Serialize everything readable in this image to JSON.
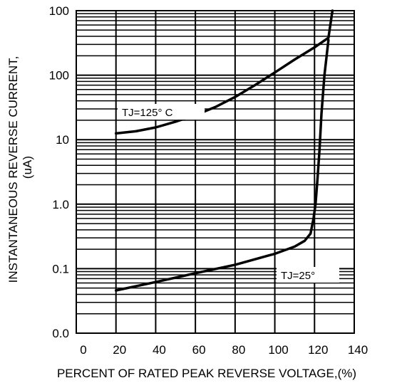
{
  "chart_data": {
    "type": "line",
    "title": "",
    "xlabel": "PERCENT OF RATED PEAK REVERSE VOLTAGE,(%)",
    "ylabel_line1": "INSTANTANEOUS REVERSE CURRENT,",
    "ylabel_line2": "(uA)",
    "x_ticks": [
      "0",
      "20",
      "40",
      "60",
      "80",
      "100",
      "120",
      "140"
    ],
    "x_range": [
      0,
      140
    ],
    "y_tick_labels": [
      "0.0",
      "0.1",
      "1.0",
      "10",
      "100",
      "100"
    ],
    "y_range_decades": [
      0,
      5
    ],
    "grid": true,
    "y_scale": "log",
    "series": [
      {
        "name": "TJ=125° C",
        "color": "#000000",
        "points": [
          {
            "x": 20,
            "y": 12.5
          },
          {
            "x": 30,
            "y": 13.5
          },
          {
            "x": 40,
            "y": 15.5
          },
          {
            "x": 50,
            "y": 19
          },
          {
            "x": 60,
            "y": 24
          },
          {
            "x": 70,
            "y": 32
          },
          {
            "x": 80,
            "y": 46
          },
          {
            "x": 90,
            "y": 70
          },
          {
            "x": 100,
            "y": 110
          },
          {
            "x": 110,
            "y": 175
          },
          {
            "x": 120,
            "y": 270
          },
          {
            "x": 127,
            "y": 380
          },
          {
            "x": 129,
            "y": 1000
          }
        ]
      },
      {
        "name": "TJ=25°",
        "color": "#000000",
        "points": [
          {
            "x": 20,
            "y": 0.046
          },
          {
            "x": 40,
            "y": 0.062
          },
          {
            "x": 60,
            "y": 0.085
          },
          {
            "x": 80,
            "y": 0.115
          },
          {
            "x": 100,
            "y": 0.17
          },
          {
            "x": 110,
            "y": 0.22
          },
          {
            "x": 115,
            "y": 0.27
          },
          {
            "x": 118,
            "y": 0.35
          },
          {
            "x": 119.5,
            "y": 0.6
          },
          {
            "x": 120.5,
            "y": 1.0
          },
          {
            "x": 121.5,
            "y": 2.5
          },
          {
            "x": 122.5,
            "y": 7
          },
          {
            "x": 123.5,
            "y": 25
          },
          {
            "x": 125,
            "y": 100
          },
          {
            "x": 127,
            "y": 350
          }
        ]
      }
    ],
    "annotations": [
      {
        "text": "TJ=125° C",
        "series": 0
      },
      {
        "text": "TJ=25°",
        "series": 1
      }
    ]
  }
}
